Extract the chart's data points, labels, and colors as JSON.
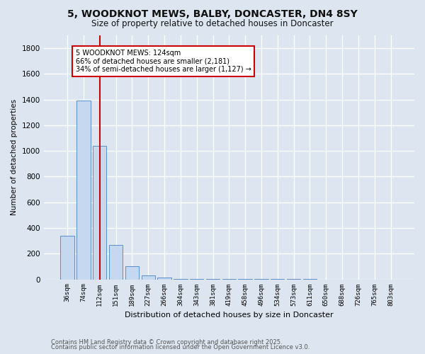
{
  "title": "5, WOODKNOT MEWS, BALBY, DONCASTER, DN4 8SY",
  "subtitle": "Size of property relative to detached houses in Doncaster",
  "xlabel": "Distribution of detached houses by size in Doncaster",
  "ylabel": "Number of detached properties",
  "bar_color": "#c5d8f0",
  "bar_edge_color": "#5b8fc9",
  "red_line_color": "#cc0000",
  "background_color": "#dde6f0",
  "plot_bg_color": "#dde6f0",
  "annotation_line1": "5 WOODKNOT MEWS: 124sqm",
  "annotation_line2": "66% of detached houses are smaller (2,181)",
  "annotation_line3": "34% of semi-detached houses are larger (1,127) →",
  "annotation_box_color": "#ffffff",
  "annotation_border_color": "#cc0000",
  "categories": [
    "36sqm",
    "74sqm",
    "112sqm",
    "151sqm",
    "189sqm",
    "227sqm",
    "266sqm",
    "304sqm",
    "343sqm",
    "381sqm",
    "419sqm",
    "458sqm",
    "496sqm",
    "534sqm",
    "573sqm",
    "611sqm",
    "650sqm",
    "688sqm",
    "726sqm",
    "765sqm",
    "803sqm"
  ],
  "values": [
    340,
    1390,
    1040,
    270,
    100,
    30,
    12,
    5,
    3,
    2,
    2,
    1,
    1,
    1,
    1,
    1,
    0,
    0,
    0,
    0,
    0
  ],
  "red_line_index": 2,
  "ylim": [
    0,
    1900
  ],
  "yticks": [
    0,
    200,
    400,
    600,
    800,
    1000,
    1200,
    1400,
    1600,
    1800
  ],
  "footer1": "Contains HM Land Registry data © Crown copyright and database right 2025.",
  "footer2": "Contains public sector information licensed under the Open Government Licence v3.0."
}
